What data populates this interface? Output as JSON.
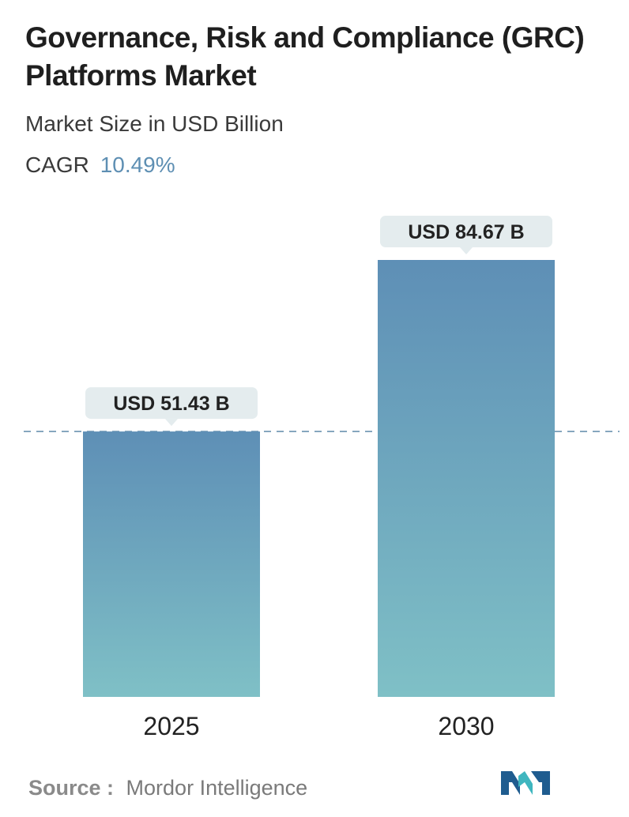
{
  "header": {
    "title": "Governance, Risk and Compliance (GRC) Platforms Market",
    "subtitle": "Market Size in USD Billion",
    "cagr_label": "CAGR",
    "cagr_value": "10.49%"
  },
  "chart_data": {
    "type": "bar",
    "categories": [
      "2025",
      "2030"
    ],
    "values": [
      51.43,
      84.67
    ],
    "data_labels": [
      "USD 51.43 B",
      "USD 84.67 B"
    ],
    "ylim": [
      0,
      84.67
    ],
    "grid": false,
    "reference_line": {
      "value": 51.43,
      "style": "dashed"
    }
  },
  "footer": {
    "source_label": "Source :",
    "source_value": "Mordor Intelligence"
  },
  "colors": {
    "bar_top": "#5e8fb6",
    "bar_bottom": "#7fc0c6",
    "label_bg": "#e4ecee",
    "dashed_line": "#6b93b0",
    "cagr_value": "#5e8fb3",
    "logo_dark": "#1f5c8f",
    "logo_teal": "#3fb6bf"
  },
  "logo": {
    "icon": "mordor-intelligence-logo-icon"
  }
}
